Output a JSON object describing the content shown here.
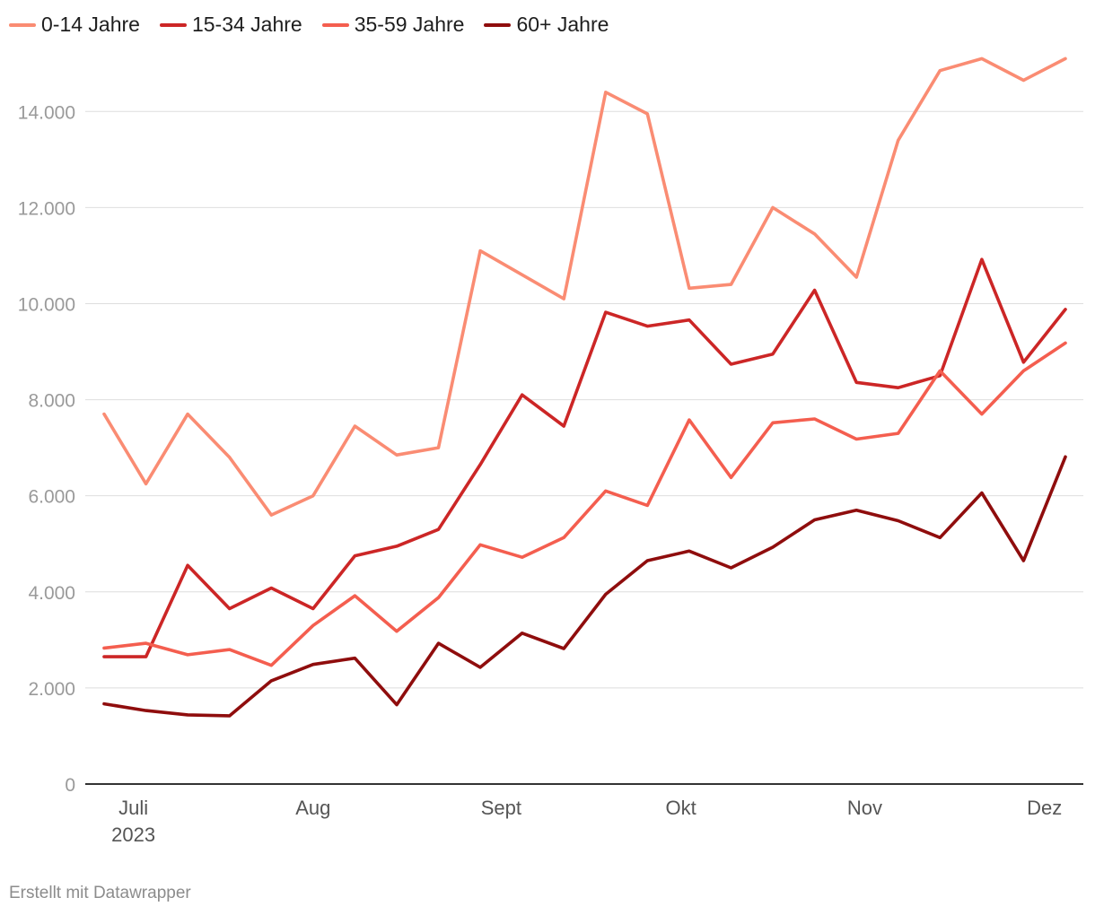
{
  "chart_data": {
    "type": "line",
    "title": "",
    "xlabel": "",
    "ylabel": "",
    "ylim": [
      0,
      15200
    ],
    "y_ticks": [
      {
        "value": 0,
        "label": "0"
      },
      {
        "value": 2000,
        "label": "2.000"
      },
      {
        "value": 4000,
        "label": "4.000"
      },
      {
        "value": 6000,
        "label": "6.000"
      },
      {
        "value": 8000,
        "label": "8.000"
      },
      {
        "value": 10000,
        "label": "10.000"
      },
      {
        "value": 12000,
        "label": "12.000"
      },
      {
        "value": 14000,
        "label": "14.000"
      }
    ],
    "x": [
      "2023-07-03",
      "2023-07-10",
      "2023-07-17",
      "2023-07-24",
      "2023-07-31",
      "2023-08-07",
      "2023-08-14",
      "2023-08-21",
      "2023-08-28",
      "2023-09-04",
      "2023-09-11",
      "2023-09-18",
      "2023-09-25",
      "2023-10-02",
      "2023-10-09",
      "2023-10-16",
      "2023-10-23",
      "2023-10-30",
      "2023-11-06",
      "2023-11-13",
      "2023-11-20",
      "2023-11-27",
      "2023-12-04",
      "2023-12-11"
    ],
    "x_ticks": [
      {
        "position": 0.7,
        "label": "Juli",
        "sublabel": "2023"
      },
      {
        "position": 5.0,
        "label": "Aug",
        "sublabel": ""
      },
      {
        "position": 9.5,
        "label": "Sept",
        "sublabel": ""
      },
      {
        "position": 13.8,
        "label": "Okt",
        "sublabel": ""
      },
      {
        "position": 18.2,
        "label": "Nov",
        "sublabel": ""
      },
      {
        "position": 22.5,
        "label": "Dez",
        "sublabel": ""
      }
    ],
    "grid": true,
    "legend_position": "top-left",
    "series": [
      {
        "name": "0-14 Jahre",
        "color": "#fa8c73",
        "values": [
          7700,
          6250,
          7700,
          6800,
          5600,
          6000,
          7450,
          6850,
          7000,
          11100,
          10600,
          10100,
          14400,
          13950,
          10320,
          10400,
          12000,
          11450,
          10550,
          13400,
          14850,
          15100,
          14650,
          15100
        ]
      },
      {
        "name": "15-34 Jahre",
        "color": "#cc2626",
        "values": [
          2650,
          2650,
          4550,
          3650,
          4080,
          3650,
          4750,
          4950,
          5300,
          6650,
          8100,
          7450,
          9820,
          9530,
          9660,
          8740,
          8950,
          10280,
          8360,
          8250,
          8500,
          10920,
          8780,
          9880
        ]
      },
      {
        "name": "35-59 Jahre",
        "color": "#f45e4f",
        "values": [
          2830,
          2930,
          2690,
          2800,
          2470,
          3300,
          3920,
          3180,
          3880,
          4980,
          4720,
          5130,
          6100,
          5800,
          7580,
          6380,
          7520,
          7600,
          7180,
          7300,
          8600,
          7700,
          8600,
          9180
        ]
      },
      {
        "name": "60+ Jahre",
        "color": "#8f0d0d",
        "values": [
          1670,
          1530,
          1440,
          1420,
          2150,
          2490,
          2620,
          1650,
          2930,
          2430,
          3140,
          2820,
          3950,
          4650,
          4850,
          4500,
          4930,
          5500,
          5700,
          5480,
          5130,
          6060,
          4650,
          6810
        ]
      }
    ]
  },
  "footer": {
    "credit": "Erstellt mit Datawrapper"
  }
}
